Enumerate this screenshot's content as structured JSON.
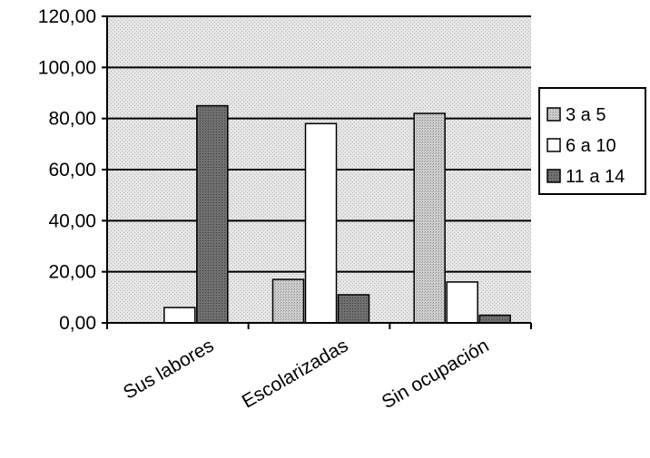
{
  "chart_data": {
    "type": "bar",
    "title": "",
    "xlabel": "",
    "ylabel": "",
    "categories": [
      "Sus labores",
      "Escolarizadas",
      "Sin ocupación"
    ],
    "series": [
      {
        "name": "3 a 5",
        "values": [
          0,
          17,
          82
        ],
        "color": "#c8c8c8"
      },
      {
        "name": "6  a 10",
        "values": [
          6,
          78,
          16
        ],
        "color": "#ffffff"
      },
      {
        "name": "11 a 14",
        "values": [
          85,
          11,
          3
        ],
        "color": "#6e6e6e"
      }
    ],
    "ylim": [
      0,
      120
    ],
    "yticks": [
      0,
      20,
      40,
      60,
      80,
      100,
      120
    ],
    "ytick_labels": [
      "0,00",
      "20,00",
      "40,00",
      "60,00",
      "80,00",
      "100,00",
      "120,00"
    ],
    "grid": true,
    "legend_position": "right"
  }
}
